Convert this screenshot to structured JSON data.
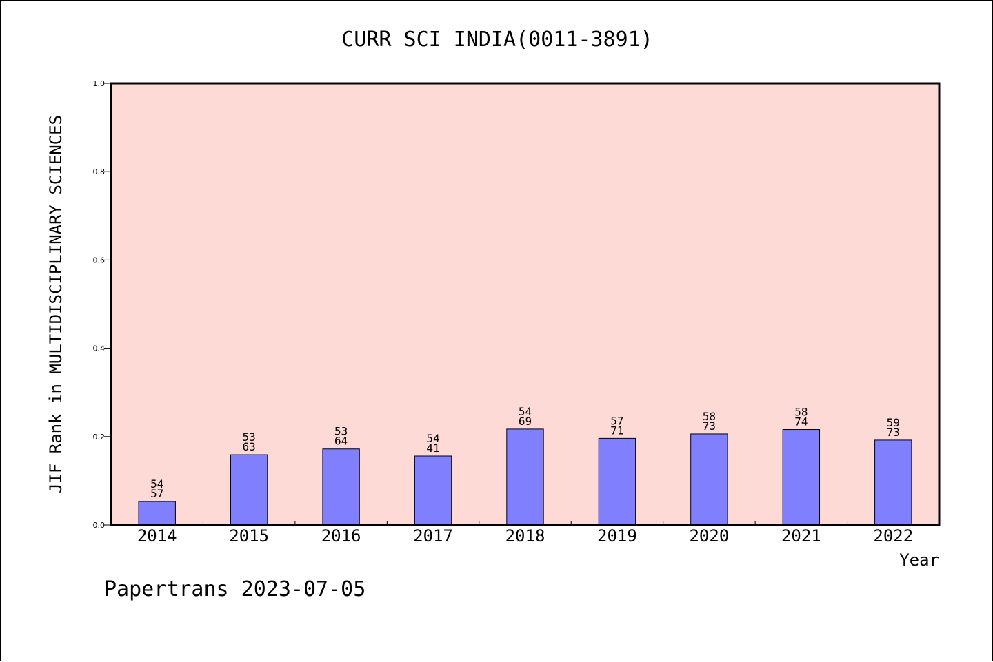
{
  "chart_data": {
    "type": "bar",
    "title": "CURR SCI INDIA(0011-3891)",
    "xlabel": "Year",
    "ylabel": "JIF Rank in MULTIDISCIPLINARY SCIENCES",
    "categories": [
      "2014",
      "2015",
      "2016",
      "2017",
      "2018",
      "2019",
      "2020",
      "2021",
      "2022"
    ],
    "values": [
      0.053,
      0.159,
      0.172,
      0.156,
      0.217,
      0.196,
      0.206,
      0.216,
      0.192
    ],
    "label_top": [
      "54",
      "53",
      "53",
      "54",
      "54",
      "57",
      "58",
      "58",
      "59"
    ],
    "label_bottom": [
      "57",
      "63",
      "64",
      "41",
      "69",
      "71",
      "73",
      "74",
      "73"
    ],
    "ylim": [
      0,
      1.0
    ],
    "yticks": [
      "0.0",
      "0.2",
      "0.4",
      "0.6",
      "0.8",
      "1.0"
    ],
    "grid": false,
    "colors": {
      "plot_background": "#fddad6",
      "bar_fill": "#8080ff",
      "bar_stroke": "#000000"
    }
  },
  "footer": "Papertrans 2023-07-05"
}
